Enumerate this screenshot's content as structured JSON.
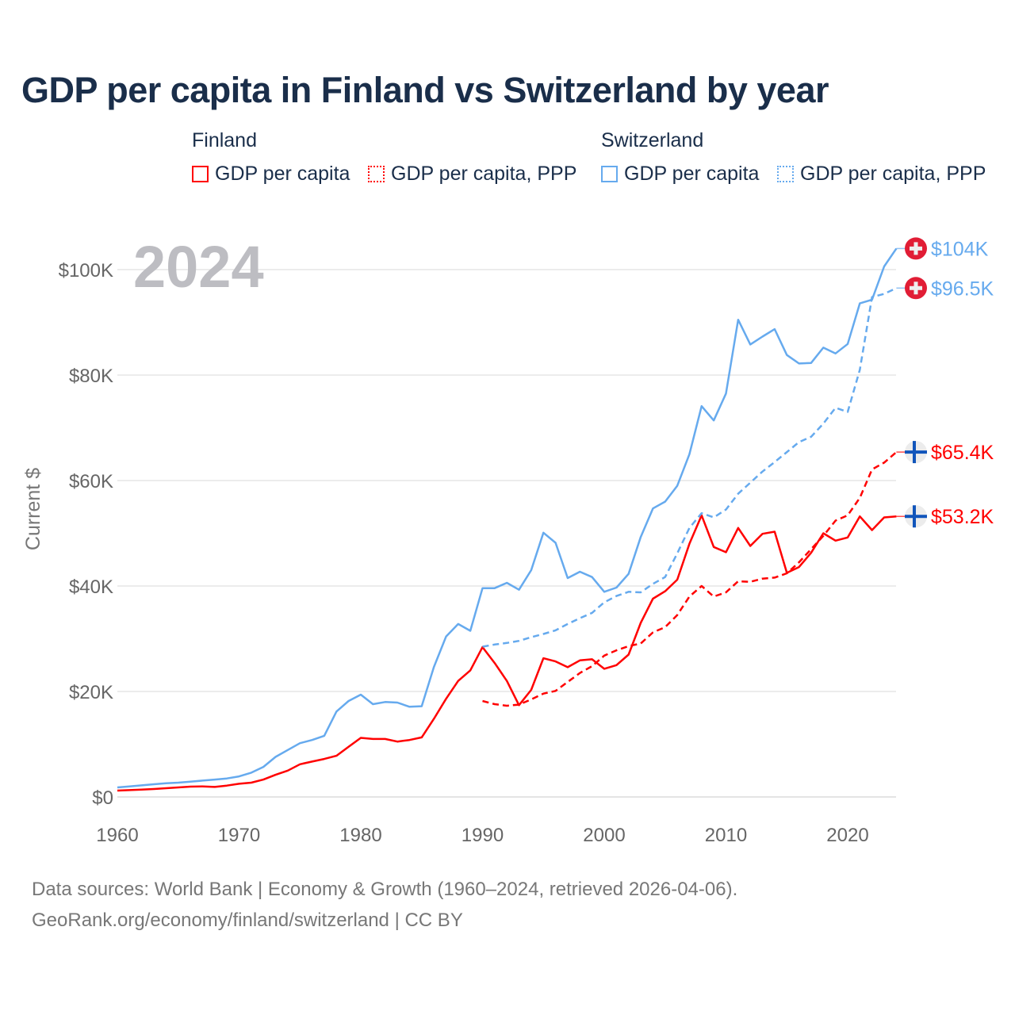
{
  "title": "GDP per capita in Finland vs Switzerland by year",
  "legend": {
    "groups": [
      {
        "name": "Finland",
        "items": [
          "GDP per capita",
          "GDP per capita, PPP"
        ]
      },
      {
        "name": "Switzerland",
        "items": [
          "GDP per capita",
          "GDP per capita, PPP"
        ]
      }
    ]
  },
  "year_overlay": "2024",
  "source_line1": "Data sources: World Bank | Economy & Growth (1960–2024, retrieved 2026-04-06).",
  "source_line2": "GeoRank.org/economy/finland/switzerland | CC BY",
  "colors": {
    "finland": "#ff0000",
    "switzerland": "#66aaee",
    "grid": "#e6e6e6",
    "axis_text": "#666666"
  },
  "chart_data": {
    "type": "line",
    "title": "GDP per capita in Finland vs Switzerland by year",
    "xlabel": "",
    "ylabel": "Current $",
    "xlim": [
      1960,
      2024
    ],
    "ylim": [
      0,
      105000
    ],
    "x_ticks": [
      1960,
      1970,
      1980,
      1990,
      2000,
      2010,
      2020
    ],
    "x_tick_labels": [
      "1960",
      "1970",
      "1980",
      "1990",
      "2000",
      "2010",
      "2020"
    ],
    "y_ticks": [
      0,
      20000,
      40000,
      60000,
      80000,
      100000
    ],
    "y_tick_labels": [
      "$0",
      "$20K",
      "$40K",
      "$60K",
      "$80K",
      "$100K"
    ],
    "grid": true,
    "legend_position": "top",
    "series": [
      {
        "name": "Finland GDP per capita",
        "country": "finland",
        "dashed": false,
        "start": 1960,
        "end_label": "$53.2K",
        "values": [
          1200,
          1300,
          1400,
          1500,
          1650,
          1800,
          1950,
          2000,
          1900,
          2150,
          2500,
          2700,
          3300,
          4200,
          5000,
          6200,
          6700,
          7200,
          7800,
          9500,
          11200,
          11000,
          11000,
          10500,
          10800,
          11300,
          14800,
          18600,
          22000,
          24000,
          28400,
          25400,
          22000,
          17400,
          20300,
          26300,
          25700,
          24600,
          25900,
          26100,
          24300,
          25000,
          27000,
          33000,
          37600,
          39000,
          41200,
          48000,
          53400,
          47400,
          46400,
          51000,
          47600,
          49900,
          50300,
          42500,
          43600,
          46300,
          50000,
          48600,
          49200,
          53200,
          50600,
          53000,
          53200
        ]
      },
      {
        "name": "Finland GDP per capita, PPP",
        "country": "finland",
        "dashed": true,
        "start": 1990,
        "end_label": "$65.4K",
        "values": [
          18200,
          17600,
          17300,
          17500,
          18500,
          19600,
          20100,
          21800,
          23500,
          24800,
          26800,
          27800,
          28600,
          29100,
          31200,
          32200,
          34500,
          38000,
          40000,
          38000,
          38800,
          40900,
          40800,
          41400,
          41600,
          42400,
          44500,
          47000,
          49500,
          52400,
          53400,
          56700,
          62100,
          63400,
          65400
        ]
      },
      {
        "name": "Switzerland GDP per capita",
        "country": "switzerland",
        "dashed": false,
        "start": 1960,
        "end_label": "$104K",
        "values": [
          1800,
          2000,
          2200,
          2400,
          2600,
          2700,
          2900,
          3100,
          3300,
          3500,
          3900,
          4600,
          5700,
          7600,
          8900,
          10200,
          10800,
          11600,
          16200,
          18200,
          19400,
          17600,
          18000,
          17900,
          17100,
          17200,
          24600,
          30400,
          32800,
          31500,
          39600,
          39600,
          40600,
          39300,
          43000,
          50100,
          48200,
          41500,
          42700,
          41700,
          38900,
          39700,
          42300,
          49300,
          54700,
          56000,
          59000,
          65000,
          74100,
          71400,
          76500,
          90500,
          85800,
          87300,
          88700,
          83800,
          82200,
          82300,
          85200,
          84100,
          85900,
          93600,
          94300,
          100600,
          104000
        ]
      },
      {
        "name": "Switzerland GDP per capita, PPP",
        "country": "switzerland",
        "dashed": true,
        "start": 1990,
        "end_label": "$96.5K",
        "values": [
          28500,
          28900,
          29200,
          29600,
          30300,
          30900,
          31600,
          32800,
          33900,
          34900,
          36900,
          38100,
          38900,
          38800,
          40400,
          41700,
          46200,
          51000,
          53800,
          53000,
          54500,
          57500,
          59600,
          61700,
          63500,
          65400,
          67300,
          68300,
          70800,
          73800,
          73000,
          81000,
          94800,
          95400,
          96500
        ]
      }
    ]
  }
}
